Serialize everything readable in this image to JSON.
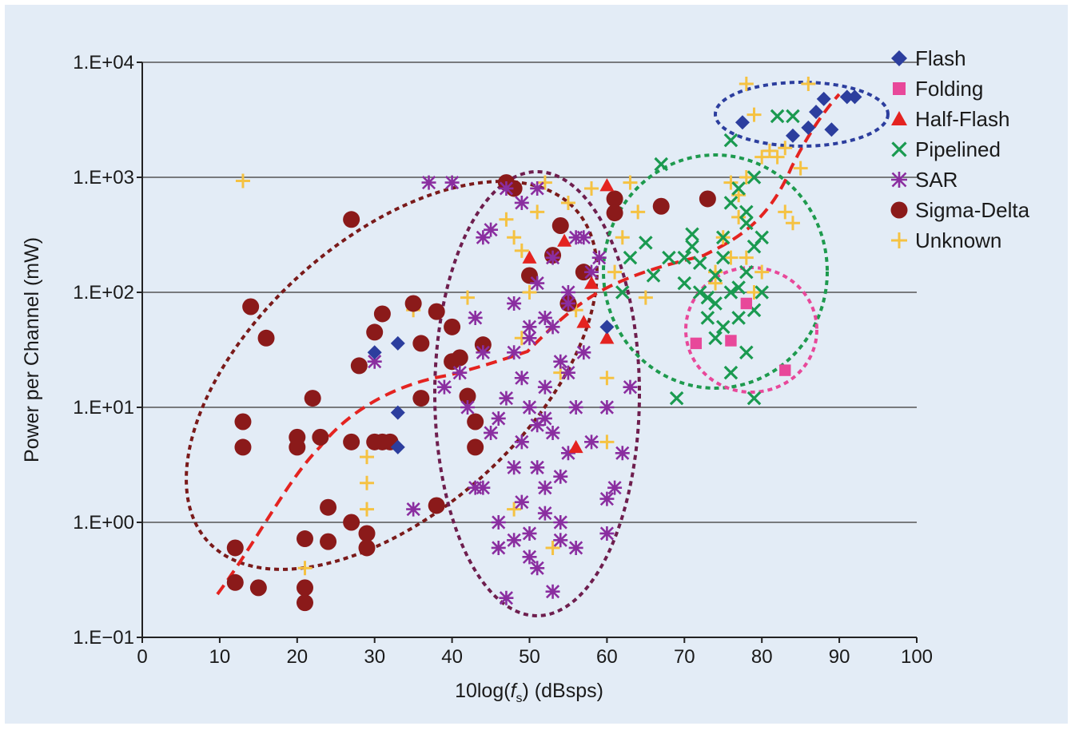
{
  "chart_data": {
    "type": "scatter",
    "xlabel_prefix": "10log(",
    "xlabel_var": "f",
    "xlabel_sub": "s",
    "xlabel_suffix": ") (dBsps)",
    "ylabel": "Power per Channel (mW)",
    "xlim": [
      0,
      100
    ],
    "ylim": [
      0.1,
      10000
    ],
    "yscale": "log",
    "xticks": [
      "0",
      "10",
      "20",
      "30",
      "40",
      "50",
      "60",
      "70",
      "80",
      "90",
      "100"
    ],
    "yticks": [
      "1.E−01",
      "1.E+00",
      "1.E+01",
      "1.E+02",
      "1.E+03",
      "1.E+04"
    ],
    "grid": "horizontal",
    "legend_position": "top-right",
    "series": [
      {
        "name": "Flash",
        "marker": "diamond",
        "color": "#2c3e9e",
        "points": [
          [
            30,
            30
          ],
          [
            33,
            36
          ],
          [
            33,
            9
          ],
          [
            33,
            4.5
          ],
          [
            60,
            50
          ],
          [
            77.5,
            3000
          ],
          [
            84,
            2300
          ],
          [
            86,
            2700
          ],
          [
            87,
            3700
          ],
          [
            88,
            4800
          ],
          [
            89,
            2600
          ],
          [
            91,
            5000
          ],
          [
            92,
            5000
          ]
        ]
      },
      {
        "name": "Folding",
        "marker": "square",
        "color": "#e8489a",
        "points": [
          [
            71.5,
            36
          ],
          [
            83,
            21
          ],
          [
            76,
            38
          ],
          [
            78,
            80
          ]
        ]
      },
      {
        "name": "Half-Flash",
        "marker": "triangle",
        "color": "#e42320",
        "points": [
          [
            54.5,
            280
          ],
          [
            56,
            4.5
          ],
          [
            57,
            55
          ],
          [
            58,
            120
          ],
          [
            60,
            40
          ],
          [
            60,
            850
          ],
          [
            50,
            200
          ]
        ]
      },
      {
        "name": "Pipelined",
        "marker": "x",
        "color": "#1a9a50",
        "points": [
          [
            67,
            1300
          ],
          [
            70,
            120
          ],
          [
            71,
            250
          ],
          [
            72,
            180
          ],
          [
            73,
            90
          ],
          [
            73,
            60
          ],
          [
            74,
            140
          ],
          [
            74,
            40
          ],
          [
            75,
            300
          ],
          [
            75,
            200
          ],
          [
            76,
            100
          ],
          [
            76,
            2100
          ],
          [
            76,
            20
          ],
          [
            77,
            800
          ],
          [
            77,
            60
          ],
          [
            78,
            150
          ],
          [
            78,
            30
          ],
          [
            78,
            400
          ],
          [
            79,
            250
          ],
          [
            79,
            12
          ],
          [
            80,
            300
          ],
          [
            69,
            12
          ],
          [
            65,
            270
          ],
          [
            66,
            140
          ],
          [
            68,
            200
          ],
          [
            62,
            100
          ],
          [
            63,
            200
          ],
          [
            72,
            100
          ],
          [
            75,
            50
          ],
          [
            77,
            110
          ],
          [
            82,
            3400
          ],
          [
            84,
            3400
          ],
          [
            80,
            100
          ],
          [
            79,
            70
          ],
          [
            78,
            500
          ],
          [
            76,
            600
          ],
          [
            74,
            80
          ],
          [
            71,
            320
          ],
          [
            70,
            200
          ],
          [
            79,
            1000
          ]
        ]
      },
      {
        "name": "SAR",
        "marker": "asterisk",
        "color": "#8a2ea0",
        "points": [
          [
            37,
            900
          ],
          [
            40,
            900
          ],
          [
            30,
            25
          ],
          [
            35,
            1.3
          ],
          [
            43,
            2
          ],
          [
            44,
            300
          ],
          [
            45,
            350
          ],
          [
            46,
            0.6
          ],
          [
            47,
            0.22
          ],
          [
            48,
            30
          ],
          [
            48,
            80
          ],
          [
            49,
            5
          ],
          [
            49,
            1.5
          ],
          [
            50,
            0.8
          ],
          [
            50,
            10
          ],
          [
            50,
            40
          ],
          [
            51,
            3
          ],
          [
            51,
            0.4
          ],
          [
            51,
            120
          ],
          [
            52,
            2
          ],
          [
            52,
            15
          ],
          [
            52,
            60
          ],
          [
            53,
            0.25
          ],
          [
            53,
            6
          ],
          [
            53,
            200
          ],
          [
            54,
            1
          ],
          [
            54,
            25
          ],
          [
            55,
            4
          ],
          [
            55,
            80
          ],
          [
            56,
            10
          ],
          [
            56,
            0.6
          ],
          [
            57,
            30
          ],
          [
            58,
            5
          ],
          [
            58,
            150
          ],
          [
            60,
            1.6
          ],
          [
            60,
            10
          ],
          [
            60,
            0.8
          ],
          [
            61,
            2
          ],
          [
            62,
            4
          ],
          [
            63,
            15
          ],
          [
            47,
            800
          ],
          [
            49,
            600
          ],
          [
            51,
            800
          ],
          [
            56,
            300
          ],
          [
            44,
            2
          ],
          [
            46,
            8
          ],
          [
            48,
            3
          ],
          [
            50,
            0.5
          ],
          [
            52,
            1.2
          ],
          [
            54,
            2.5
          ],
          [
            55,
            20
          ],
          [
            53,
            50
          ],
          [
            49,
            18
          ],
          [
            47,
            12
          ],
          [
            45,
            6
          ],
          [
            51,
            7
          ],
          [
            57,
            300
          ],
          [
            59,
            200
          ],
          [
            50,
            50
          ],
          [
            52,
            8
          ],
          [
            54,
            0.7
          ],
          [
            43,
            60
          ],
          [
            44,
            30
          ],
          [
            41,
            20
          ],
          [
            39,
            15
          ],
          [
            42,
            10
          ],
          [
            46,
            1
          ],
          [
            48,
            0.7
          ],
          [
            55,
            100
          ]
        ]
      },
      {
        "name": "Sigma-Delta",
        "marker": "circle",
        "color": "#8b1a1a",
        "points": [
          [
            12,
            0.6
          ],
          [
            12,
            0.3
          ],
          [
            13,
            7.5
          ],
          [
            13,
            4.5
          ],
          [
            14,
            75
          ],
          [
            15,
            0.27
          ],
          [
            16,
            40
          ],
          [
            20,
            5.5
          ],
          [
            20,
            4.5
          ],
          [
            21,
            0.2
          ],
          [
            21,
            0.27
          ],
          [
            21,
            0.72
          ],
          [
            22,
            12
          ],
          [
            23,
            5.5
          ],
          [
            24,
            1.35
          ],
          [
            24,
            0.68
          ],
          [
            27,
            430
          ],
          [
            27,
            5
          ],
          [
            27,
            1
          ],
          [
            28,
            23
          ],
          [
            29,
            0.8
          ],
          [
            29,
            0.6
          ],
          [
            30,
            45
          ],
          [
            30,
            5
          ],
          [
            31,
            65
          ],
          [
            31,
            5
          ],
          [
            32,
            5
          ],
          [
            35,
            80
          ],
          [
            36,
            12
          ],
          [
            36,
            36
          ],
          [
            38,
            68
          ],
          [
            38,
            1.4
          ],
          [
            40,
            50
          ],
          [
            40,
            25
          ],
          [
            41,
            27
          ],
          [
            42,
            12.5
          ],
          [
            43,
            4.5
          ],
          [
            43,
            7.5
          ],
          [
            44,
            35
          ],
          [
            47,
            900
          ],
          [
            48,
            800
          ],
          [
            50,
            140
          ],
          [
            53,
            210
          ],
          [
            54,
            380
          ],
          [
            55,
            80
          ],
          [
            57,
            150
          ],
          [
            61,
            650
          ],
          [
            61,
            490
          ],
          [
            67,
            560
          ],
          [
            73,
            650
          ]
        ]
      },
      {
        "name": "Unknown",
        "marker": "plus",
        "color": "#f5c242",
        "points": [
          [
            13,
            930
          ],
          [
            21,
            0.4
          ],
          [
            29,
            3.7
          ],
          [
            29,
            2.2
          ],
          [
            29,
            1.3
          ],
          [
            35,
            70
          ],
          [
            42,
            90
          ],
          [
            47,
            430
          ],
          [
            48,
            300
          ],
          [
            48,
            1.3
          ],
          [
            49,
            40
          ],
          [
            49,
            230
          ],
          [
            50,
            100
          ],
          [
            51,
            500
          ],
          [
            52,
            900
          ],
          [
            53,
            0.6
          ],
          [
            54,
            20
          ],
          [
            55,
            600
          ],
          [
            56,
            70
          ],
          [
            58,
            800
          ],
          [
            60,
            18
          ],
          [
            60,
            5
          ],
          [
            61,
            150
          ],
          [
            62,
            300
          ],
          [
            63,
            900
          ],
          [
            64,
            500
          ],
          [
            65,
            90
          ],
          [
            74,
            120
          ],
          [
            75,
            300
          ],
          [
            76,
            900
          ],
          [
            77,
            700
          ],
          [
            78,
            1000
          ],
          [
            78,
            6500
          ],
          [
            79,
            3500
          ],
          [
            80,
            1500
          ],
          [
            81,
            1700
          ],
          [
            82,
            1500
          ],
          [
            83,
            1800
          ],
          [
            83,
            500
          ],
          [
            84,
            400
          ],
          [
            85,
            1200
          ],
          [
            78,
            200
          ],
          [
            79,
            100
          ],
          [
            80,
            150
          ],
          [
            86,
            6500
          ],
          [
            77,
            450
          ],
          [
            76,
            200
          ],
          [
            74,
            150
          ]
        ]
      }
    ]
  }
}
